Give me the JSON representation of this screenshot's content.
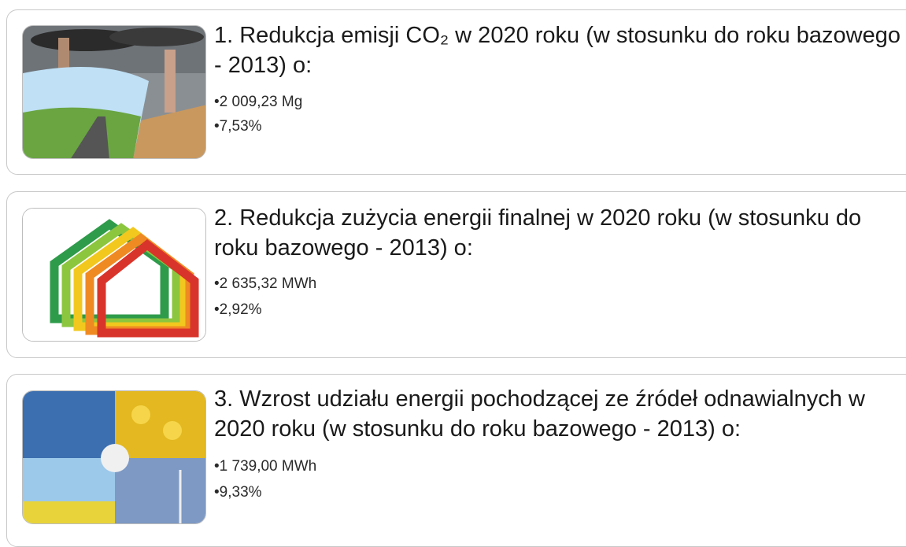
{
  "items": [
    {
      "title": "1. Redukcja emisji CO₂ w 2020 roku (w stosunku do roku bazowego - 2013) o:",
      "bullets": [
        "•2 009,23 Mg",
        "•7,53%"
      ]
    },
    {
      "title": "2. Redukcja zużycia energii finalnej w 2020 roku (w stosunku do roku bazowego - 2013) o:",
      "bullets": [
        "•2 635,32 MWh",
        "•2,92%"
      ]
    },
    {
      "title": "3. Wzrost udziału energii pochodzącej ze źródeł odnawialnych w 2020 roku (w stosunku do roku bazowego - 2013) o:",
      "bullets": [
        "•1 739,00 MWh",
        "•9,33%"
      ]
    }
  ]
}
